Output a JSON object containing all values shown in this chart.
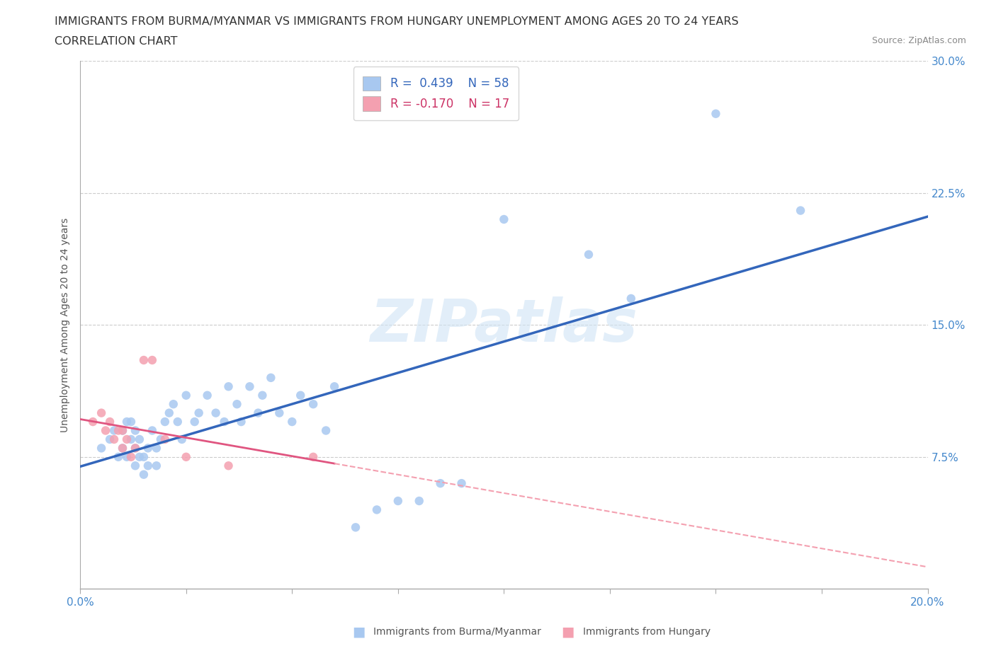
{
  "title_line1": "IMMIGRANTS FROM BURMA/MYANMAR VS IMMIGRANTS FROM HUNGARY UNEMPLOYMENT AMONG AGES 20 TO 24 YEARS",
  "title_line2": "CORRELATION CHART",
  "source_text": "Source: ZipAtlas.com",
  "ylabel": "Unemployment Among Ages 20 to 24 years",
  "xlim": [
    0.0,
    0.2
  ],
  "ylim": [
    0.0,
    0.3
  ],
  "ytick_values": [
    0.0,
    0.075,
    0.15,
    0.225,
    0.3
  ],
  "ytick_labels": [
    "",
    "7.5%",
    "15.0%",
    "22.5%",
    "30.0%"
  ],
  "watermark": "ZIPatlas",
  "legend_entries": [
    {
      "label": "Immigrants from Burma/Myanmar",
      "R": "0.439",
      "N": "58",
      "color": "#a8c8f0"
    },
    {
      "label": "Immigrants from Hungary",
      "R": "-0.170",
      "N": "17",
      "color": "#f4a0b0"
    }
  ],
  "burma_color": "#a8c8f0",
  "hungary_color": "#f4a0b0",
  "burma_line_color": "#3366bb",
  "hungary_line_color": "#e05580",
  "hungary_line_dashed_color": "#f4a0b0",
  "grid_color": "#cccccc",
  "burma_x": [
    0.005,
    0.007,
    0.008,
    0.009,
    0.01,
    0.01,
    0.011,
    0.011,
    0.012,
    0.012,
    0.013,
    0.013,
    0.013,
    0.014,
    0.014,
    0.015,
    0.015,
    0.016,
    0.016,
    0.017,
    0.018,
    0.018,
    0.019,
    0.02,
    0.021,
    0.022,
    0.023,
    0.024,
    0.025,
    0.027,
    0.028,
    0.03,
    0.032,
    0.034,
    0.035,
    0.037,
    0.038,
    0.04,
    0.042,
    0.043,
    0.045,
    0.047,
    0.05,
    0.052,
    0.055,
    0.058,
    0.06,
    0.065,
    0.07,
    0.075,
    0.08,
    0.085,
    0.09,
    0.1,
    0.12,
    0.13,
    0.15,
    0.17
  ],
  "burma_y": [
    0.08,
    0.085,
    0.09,
    0.075,
    0.08,
    0.09,
    0.095,
    0.075,
    0.085,
    0.095,
    0.07,
    0.08,
    0.09,
    0.075,
    0.085,
    0.065,
    0.075,
    0.07,
    0.08,
    0.09,
    0.08,
    0.07,
    0.085,
    0.095,
    0.1,
    0.105,
    0.095,
    0.085,
    0.11,
    0.095,
    0.1,
    0.11,
    0.1,
    0.095,
    0.115,
    0.105,
    0.095,
    0.115,
    0.1,
    0.11,
    0.12,
    0.1,
    0.095,
    0.11,
    0.105,
    0.09,
    0.115,
    0.035,
    0.045,
    0.05,
    0.05,
    0.06,
    0.06,
    0.21,
    0.19,
    0.165,
    0.27,
    0.215
  ],
  "hungary_x": [
    0.003,
    0.005,
    0.006,
    0.007,
    0.008,
    0.009,
    0.01,
    0.01,
    0.011,
    0.012,
    0.013,
    0.015,
    0.017,
    0.02,
    0.025,
    0.035,
    0.055
  ],
  "hungary_y": [
    0.095,
    0.1,
    0.09,
    0.095,
    0.085,
    0.09,
    0.08,
    0.09,
    0.085,
    0.075,
    0.08,
    0.13,
    0.13,
    0.085,
    0.075,
    0.07,
    0.075
  ],
  "title_fontsize": 11.5,
  "axis_label_fontsize": 10,
  "tick_fontsize": 11,
  "source_fontsize": 9
}
